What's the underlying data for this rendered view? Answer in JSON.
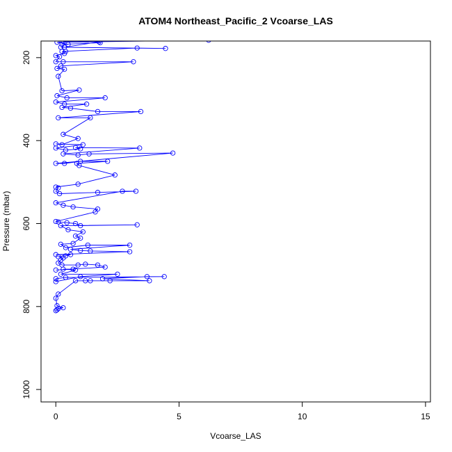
{
  "chart_data": {
    "type": "scatter",
    "title": "ATOM4 Northeast_Pacific_2 Vcoarse_LAS",
    "xlabel": "Vcoarse_LAS",
    "ylabel": "Pressure (mbar)",
    "xlim": [
      -0.6,
      15.2
    ],
    "ylim": [
      1030,
      160
    ],
    "y_reversed": true,
    "grid": false,
    "x_ticks": [
      0,
      5,
      10,
      15
    ],
    "y_ticks": [
      200,
      400,
      600,
      800,
      1000
    ],
    "series_color": "#0000ff",
    "points": [
      [
        0.0,
        810
      ],
      [
        0.05,
        808
      ],
      [
        0.1,
        805
      ],
      [
        0.3,
        803
      ],
      [
        0.05,
        798
      ],
      [
        0.0,
        780
      ],
      [
        0.1,
        770
      ],
      [
        0.8,
        738
      ],
      [
        1.2,
        738
      ],
      [
        1.4,
        738
      ],
      [
        2.2,
        738
      ],
      [
        3.8,
        738
      ],
      [
        1.9,
        733
      ],
      [
        3.7,
        728
      ],
      [
        4.4,
        728
      ],
      [
        0.4,
        730
      ],
      [
        0.0,
        733
      ],
      [
        0.0,
        740
      ],
      [
        1.0,
        728
      ],
      [
        2.5,
        722
      ],
      [
        0.2,
        722
      ],
      [
        0.8,
        712
      ],
      [
        0.3,
        710
      ],
      [
        0.7,
        710
      ],
      [
        0.0,
        712
      ],
      [
        2.0,
        705
      ],
      [
        1.7,
        700
      ],
      [
        1.2,
        698
      ],
      [
        0.9,
        700
      ],
      [
        0.25,
        700
      ],
      [
        0.1,
        695
      ],
      [
        0.2,
        688
      ],
      [
        0.3,
        683
      ],
      [
        0.1,
        680
      ],
      [
        0.4,
        678
      ],
      [
        0.6,
        675
      ],
      [
        0.0,
        675
      ],
      [
        3.0,
        668
      ],
      [
        1.4,
        666
      ],
      [
        1.0,
        665
      ],
      [
        0.6,
        662
      ],
      [
        3.0,
        652
      ],
      [
        1.3,
        652
      ],
      [
        0.4,
        658
      ],
      [
        0.2,
        650
      ],
      [
        0.7,
        648
      ],
      [
        1.0,
        635
      ],
      [
        0.8,
        630
      ],
      [
        1.1,
        620
      ],
      [
        0.5,
        615
      ],
      [
        0.2,
        605
      ],
      [
        3.3,
        603
      ],
      [
        1.0,
        605
      ],
      [
        0.8,
        600
      ],
      [
        0.45,
        598
      ],
      [
        0.1,
        596
      ],
      [
        0.0,
        595
      ],
      [
        1.6,
        572
      ],
      [
        1.7,
        565
      ],
      [
        0.7,
        560
      ],
      [
        0.3,
        556
      ],
      [
        0.0,
        550
      ],
      [
        2.7,
        522
      ],
      [
        3.25,
        522
      ],
      [
        1.7,
        525
      ],
      [
        0.15,
        528
      ],
      [
        0.0,
        522
      ],
      [
        0.1,
        514
      ],
      [
        0.0,
        512
      ],
      [
        0.9,
        505
      ],
      [
        2.4,
        483
      ],
      [
        0.95,
        460
      ],
      [
        0.85,
        455
      ],
      [
        2.1,
        450
      ],
      [
        1.0,
        450
      ],
      [
        0.35,
        455
      ],
      [
        0.0,
        455
      ],
      [
        4.75,
        430
      ],
      [
        1.35,
        432
      ],
      [
        0.9,
        435
      ],
      [
        0.3,
        432
      ],
      [
        3.4,
        418
      ],
      [
        0.8,
        417
      ],
      [
        1.0,
        420
      ],
      [
        0.4,
        423
      ],
      [
        0.0,
        418
      ],
      [
        1.1,
        410
      ],
      [
        0.0,
        408
      ],
      [
        0.25,
        410
      ],
      [
        0.9,
        395
      ],
      [
        0.3,
        385
      ],
      [
        1.4,
        345
      ],
      [
        0.1,
        345
      ],
      [
        3.45,
        330
      ],
      [
        1.7,
        330
      ],
      [
        0.6,
        322
      ],
      [
        0.25,
        320
      ],
      [
        1.25,
        312
      ],
      [
        0.35,
        312
      ],
      [
        0.0,
        307
      ],
      [
        2.0,
        297
      ],
      [
        0.45,
        297
      ],
      [
        0.05,
        292
      ],
      [
        0.95,
        278
      ],
      [
        0.25,
        280
      ],
      [
        0.1,
        245
      ],
      [
        0.35,
        228
      ],
      [
        0.05,
        226
      ],
      [
        0.2,
        220
      ],
      [
        3.15,
        210
      ],
      [
        0.3,
        210
      ],
      [
        0.0,
        210
      ],
      [
        0.15,
        198
      ],
      [
        0.0,
        195
      ],
      [
        0.35,
        190
      ],
      [
        0.4,
        185
      ],
      [
        0.25,
        185
      ],
      [
        3.3,
        177
      ],
      [
        4.45,
        178
      ],
      [
        0.2,
        175
      ],
      [
        0.35,
        175
      ],
      [
        1.75,
        162
      ],
      [
        1.8,
        164
      ],
      [
        0.25,
        168
      ],
      [
        0.5,
        168
      ],
      [
        0.05,
        163
      ],
      [
        6.2,
        158
      ],
      [
        0.3,
        161
      ]
    ]
  }
}
